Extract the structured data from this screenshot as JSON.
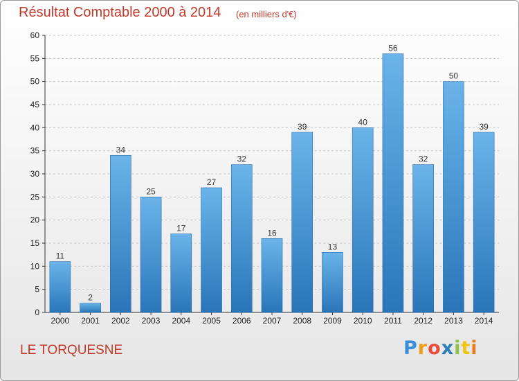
{
  "title": "Résultat Comptable 2000 à 2014",
  "subtitle": "(en milliers d'€)",
  "commune": "LE TORQUESNE",
  "logo": {
    "letters": [
      "P",
      "r",
      "o",
      "x",
      "i",
      "t",
      "i"
    ],
    "colors": [
      "#3a8fd8",
      "#f39c12",
      "#e74c3c",
      "#2980b9",
      "#8bc34a",
      "#f1c40f",
      "#e67e22"
    ]
  },
  "colors": {
    "bar_top": "#6ab4ea",
    "bar_bottom": "#2a75b8",
    "bar_stroke": "#2a6aa8",
    "grid": "#c8c8c8",
    "title": "#c0392b"
  },
  "chart_data": {
    "type": "bar",
    "categories": [
      "2000",
      "2001",
      "2002",
      "2003",
      "2004",
      "2005",
      "2006",
      "2007",
      "2008",
      "2009",
      "2010",
      "2011",
      "2012",
      "2013",
      "2014"
    ],
    "values": [
      11,
      2,
      34,
      25,
      17,
      27,
      32,
      16,
      39,
      13,
      40,
      56,
      32,
      50,
      39
    ],
    "ylim": [
      0,
      60
    ],
    "yticks": [
      0,
      5,
      10,
      15,
      20,
      25,
      30,
      35,
      40,
      45,
      50,
      55,
      60
    ],
    "grid": true
  }
}
